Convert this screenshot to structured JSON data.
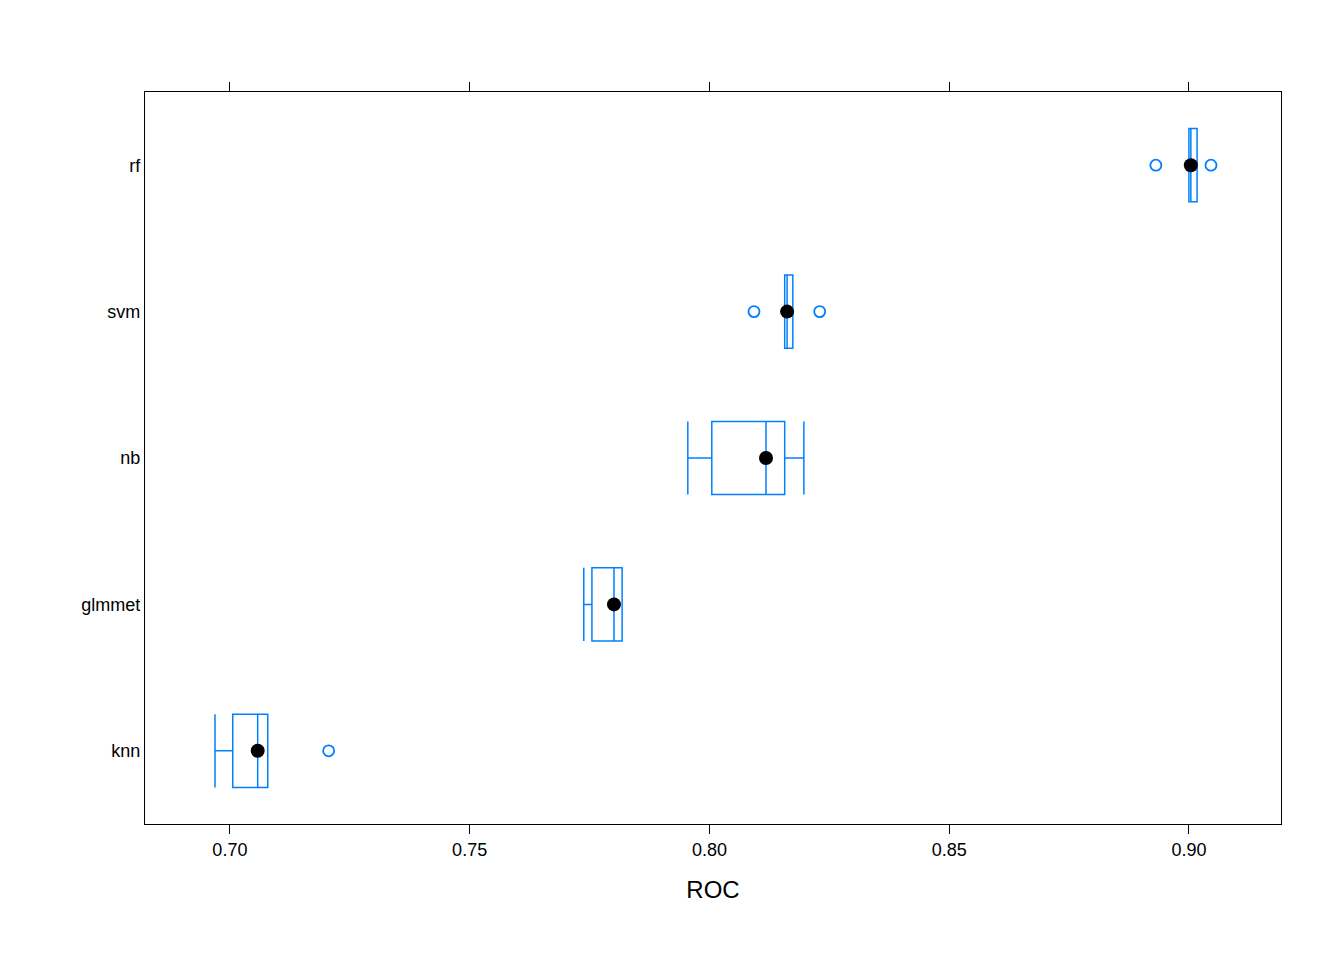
{
  "chart_data": {
    "type": "box",
    "orientation": "horizontal",
    "x_label": "ROC",
    "categories": [
      "knn",
      "glmmet",
      "nb",
      "svm",
      "rf"
    ],
    "min": [
      0.6969,
      0.7738,
      0.7955,
      0.8157,
      0.9
    ],
    "q1": [
      0.7006,
      0.7755,
      0.8005,
      0.8157,
      0.9
    ],
    "median": [
      0.7058,
      0.7801,
      0.8118,
      0.8162,
      0.9004
    ],
    "q3": [
      0.7079,
      0.7818,
      0.8157,
      0.8174,
      0.9017
    ],
    "max": [
      0.7079,
      0.7818,
      0.8197,
      0.8174,
      0.9017
    ],
    "outliers": [
      [
        0.7206
      ],
      [],
      [],
      [
        0.8093,
        0.823
      ],
      [
        0.8931,
        0.9046
      ]
    ],
    "color": "#0080ff",
    "xlim": [
      0.6823,
      0.9192
    ],
    "xticks": [
      {
        "value": 0.7,
        "label": "0.70"
      },
      {
        "value": 0.75,
        "label": "0.75"
      },
      {
        "value": 0.8,
        "label": "0.80"
      },
      {
        "value": 0.85,
        "label": "0.85"
      },
      {
        "value": 0.9,
        "label": "0.90"
      }
    ]
  }
}
